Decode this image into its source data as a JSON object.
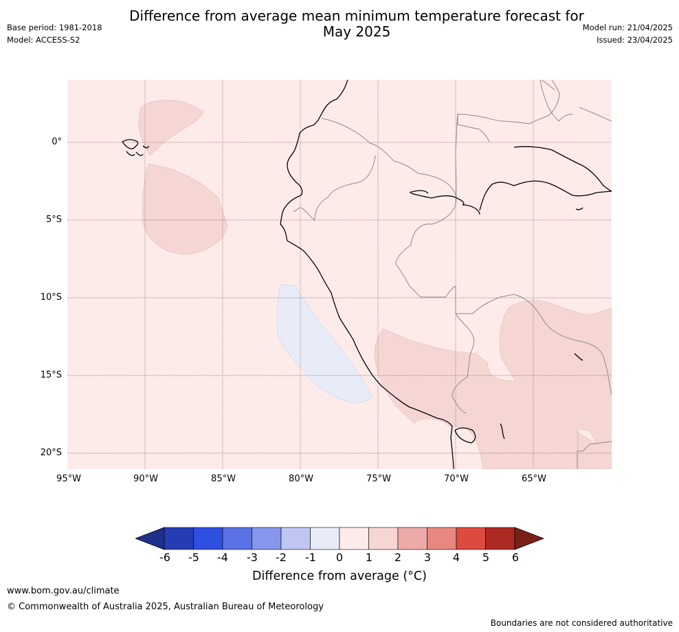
{
  "header": {
    "title_line1": "Difference from average mean minimum temperature forecast for",
    "title_line2": "May 2025",
    "base_period": "Base period: 1981-2018",
    "model": "Model: ACCESS-S2",
    "model_run": "Model run: 21/04/2025",
    "issued": "Issued: 23/04/2025"
  },
  "map": {
    "latitude_labels": [
      "0°",
      "5°S",
      "10°S",
      "15°S",
      "20°S"
    ],
    "longitude_labels": [
      "95°W",
      "90°W",
      "85°W",
      "80°W",
      "75°W",
      "70°W",
      "65°W"
    ],
    "background_color": "#fcebe9",
    "anomaly_colors": {
      "0_to_1": "#fcebe9",
      "1_to_2": "#f5d6d3",
      "-1_to_0": "#e8ecf9"
    },
    "coastline_color": "#000000",
    "border_color": "#888888"
  },
  "colorbar": {
    "ticks": [
      "-6",
      "-5",
      "-4",
      "-3",
      "-2",
      "-1",
      "0",
      "1",
      "2",
      "3",
      "4",
      "5",
      "6"
    ],
    "colors": [
      "#1e2f8c",
      "#263cb3",
      "#2f4fe0",
      "#5a72e6",
      "#8596ec",
      "#bfc6f4",
      "#e8ecf9",
      "#fcebe9",
      "#f5d6d3",
      "#eeaaa8",
      "#e88780",
      "#dc4a40",
      "#ad2a22",
      "#7a1f1a"
    ],
    "label": "Difference from average (°C)"
  },
  "footer": {
    "url": "www.bom.gov.au/climate",
    "copyright": "© Commonwealth of Australia 2025, Australian Bureau of Meteorology",
    "disclaimer": "Boundaries are not considered authoritative"
  }
}
